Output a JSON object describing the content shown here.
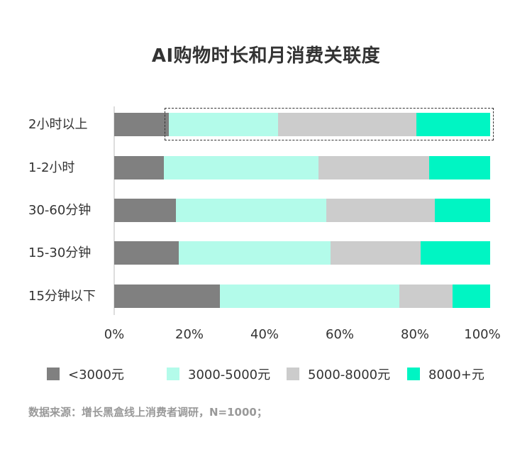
{
  "title": "AI购物时长和月消费关联度",
  "colors": {
    "lt3000": "#808080",
    "r3000_5000": "#b3fbea",
    "r5000_8000": "#cccccc",
    "gt8000": "#00f5c3"
  },
  "axis": {
    "ticks": [
      "0%",
      "20%",
      "40%",
      "60%",
      "80%",
      "100%"
    ]
  },
  "legend": [
    {
      "label": "<3000元",
      "color": "#808080"
    },
    {
      "label": "3000-5000元",
      "color": "#b3fbea"
    },
    {
      "label": "5000-8000元",
      "color": "#cccccc"
    },
    {
      "label": "8000+元",
      "color": "#00f5c3"
    }
  ],
  "source": "数据来源：增长黑盒线上消费者调研，N=1000；",
  "chart_data": {
    "type": "bar",
    "orientation": "horizontal",
    "stacked": true,
    "title": "AI购物时长和月消费关联度",
    "xlabel": "",
    "ylabel": "",
    "xlim": [
      0,
      100
    ],
    "x_ticks": [
      "0%",
      "20%",
      "40%",
      "60%",
      "80%",
      "100%"
    ],
    "legend_position": "bottom",
    "grid": false,
    "categories": [
      "2小时以上",
      "1-2小时",
      "30-60分钟",
      "15-30分钟",
      "15分钟以下"
    ],
    "series": [
      {
        "name": "<3000元",
        "color": "#808080",
        "values": [
          14.5,
          13.2,
          16.4,
          17.1,
          28.2
        ]
      },
      {
        "name": "3000-5000元",
        "color": "#b3fbea",
        "values": [
          29.1,
          41.1,
          40.0,
          40.4,
          47.6
        ]
      },
      {
        "name": "5000-8000元",
        "color": "#cccccc",
        "values": [
          36.7,
          29.5,
          28.9,
          24.1,
          14.2
        ]
      },
      {
        "name": "8000+元",
        "color": "#00f5c3",
        "values": [
          19.7,
          16.2,
          14.7,
          18.4,
          10.0
        ]
      }
    ],
    "annotations": [
      "dashed highlight box around non-<3000元 segments of 2小时以上 bar"
    ],
    "source": "数据来源：增长黑盒线上消费者调研，N=1000；"
  }
}
